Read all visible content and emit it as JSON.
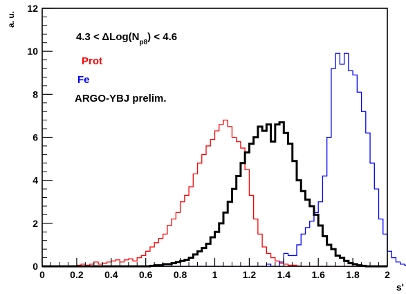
{
  "chart_data": {
    "type": "line",
    "step": true,
    "xlabel": "s'",
    "ylabel": "a. u.",
    "xlim": [
      0,
      2
    ],
    "ylim": [
      0,
      12
    ],
    "x_ticks": [
      "0",
      "0.2",
      "0.4",
      "0.6",
      "0.8",
      "1",
      "1.2",
      "1.4",
      "1.6",
      "1.8",
      "2"
    ],
    "y_ticks": [
      "0",
      "2",
      "4",
      "6",
      "8",
      "10",
      "12"
    ],
    "bin_width": 0.025,
    "legend_position": "top-left",
    "annotation": {
      "title_prefix": "4.3 < ",
      "title_delta": "Δ",
      "title_log": "Log(N",
      "title_sub": "p8",
      "title_suffix": ") < 4.6",
      "label_prot": "Prot",
      "label_fe": "Fe",
      "label_argo": "ARGO-YBJ prelim."
    },
    "series": [
      {
        "name": "Prot",
        "color": "#ff0000",
        "x_start": 0,
        "values": [
          0,
          0,
          0,
          0,
          0,
          0,
          0,
          0,
          0.05,
          0.1,
          0.05,
          0.1,
          0.2,
          0.1,
          0.15,
          0.2,
          0.25,
          0.3,
          0.2,
          0.3,
          0.35,
          0.25,
          0.4,
          0.5,
          0.7,
          0.9,
          1.1,
          1.3,
          1.5,
          1.9,
          2.2,
          2.5,
          3.0,
          3.3,
          3.7,
          4.3,
          4.8,
          5.2,
          5.6,
          5.9,
          6.3,
          6.6,
          6.8,
          6.5,
          6.0,
          5.8,
          5.5,
          4.5,
          3.3,
          2.2,
          1.5,
          0.9,
          0.6,
          0.4,
          0.25,
          0.15,
          0.1,
          0.05,
          0.05,
          0.02,
          0,
          0,
          0,
          0,
          0,
          0,
          0,
          0,
          0,
          0,
          0,
          0,
          0,
          0,
          0,
          0,
          0,
          0,
          0,
          0
        ]
      },
      {
        "name": "Fe",
        "color": "#0000ff",
        "x_start": 0,
        "values": [
          0,
          0,
          0,
          0,
          0,
          0,
          0,
          0,
          0,
          0,
          0,
          0,
          0,
          0,
          0,
          0,
          0,
          0,
          0,
          0,
          0,
          0,
          0,
          0,
          0,
          0,
          0,
          0,
          0,
          0,
          0,
          0,
          0,
          0,
          0,
          0,
          0,
          0,
          0,
          0,
          0,
          0,
          0,
          0,
          0,
          0,
          0,
          0,
          0,
          0,
          0,
          0,
          0.1,
          0,
          0,
          0.2,
          0.6,
          0.5,
          0.5,
          1.0,
          1.5,
          1.8,
          2.1,
          2.5,
          3.0,
          4.2,
          6.0,
          9.2,
          9.9,
          9.4,
          9.9,
          9.1,
          8.9,
          8.1,
          7.2,
          6.2,
          4.8,
          3.6,
          2.2,
          1.5,
          0.7,
          0.4,
          0.2,
          0.1,
          0.05,
          0,
          0,
          0,
          0,
          0
        ]
      },
      {
        "name": "ARGO-YBJ prelim.",
        "color": "#000000",
        "x_start": 0,
        "values": [
          0,
          0,
          0,
          0,
          0,
          0,
          0,
          0,
          0,
          0,
          0,
          0,
          0,
          0,
          0,
          0,
          0,
          0,
          0,
          0,
          0,
          0,
          0,
          0,
          0,
          0.02,
          0.05,
          0.05,
          0.1,
          0.1,
          0.15,
          0.2,
          0.25,
          0.3,
          0.4,
          0.55,
          0.7,
          0.85,
          1.05,
          1.35,
          1.6,
          2.0,
          2.5,
          3.0,
          3.6,
          4.2,
          4.8,
          5.3,
          5.7,
          6.0,
          6.5,
          6.3,
          6.6,
          5.8,
          6.6,
          6.7,
          6.2,
          5.7,
          4.9,
          4.0,
          3.5,
          3.1,
          2.8,
          2.4,
          1.9,
          1.4,
          1.0,
          0.8,
          0.5,
          0.4,
          0.25,
          0.15,
          0.1,
          0.05,
          0.02,
          0,
          0,
          0,
          0,
          0
        ]
      }
    ]
  }
}
